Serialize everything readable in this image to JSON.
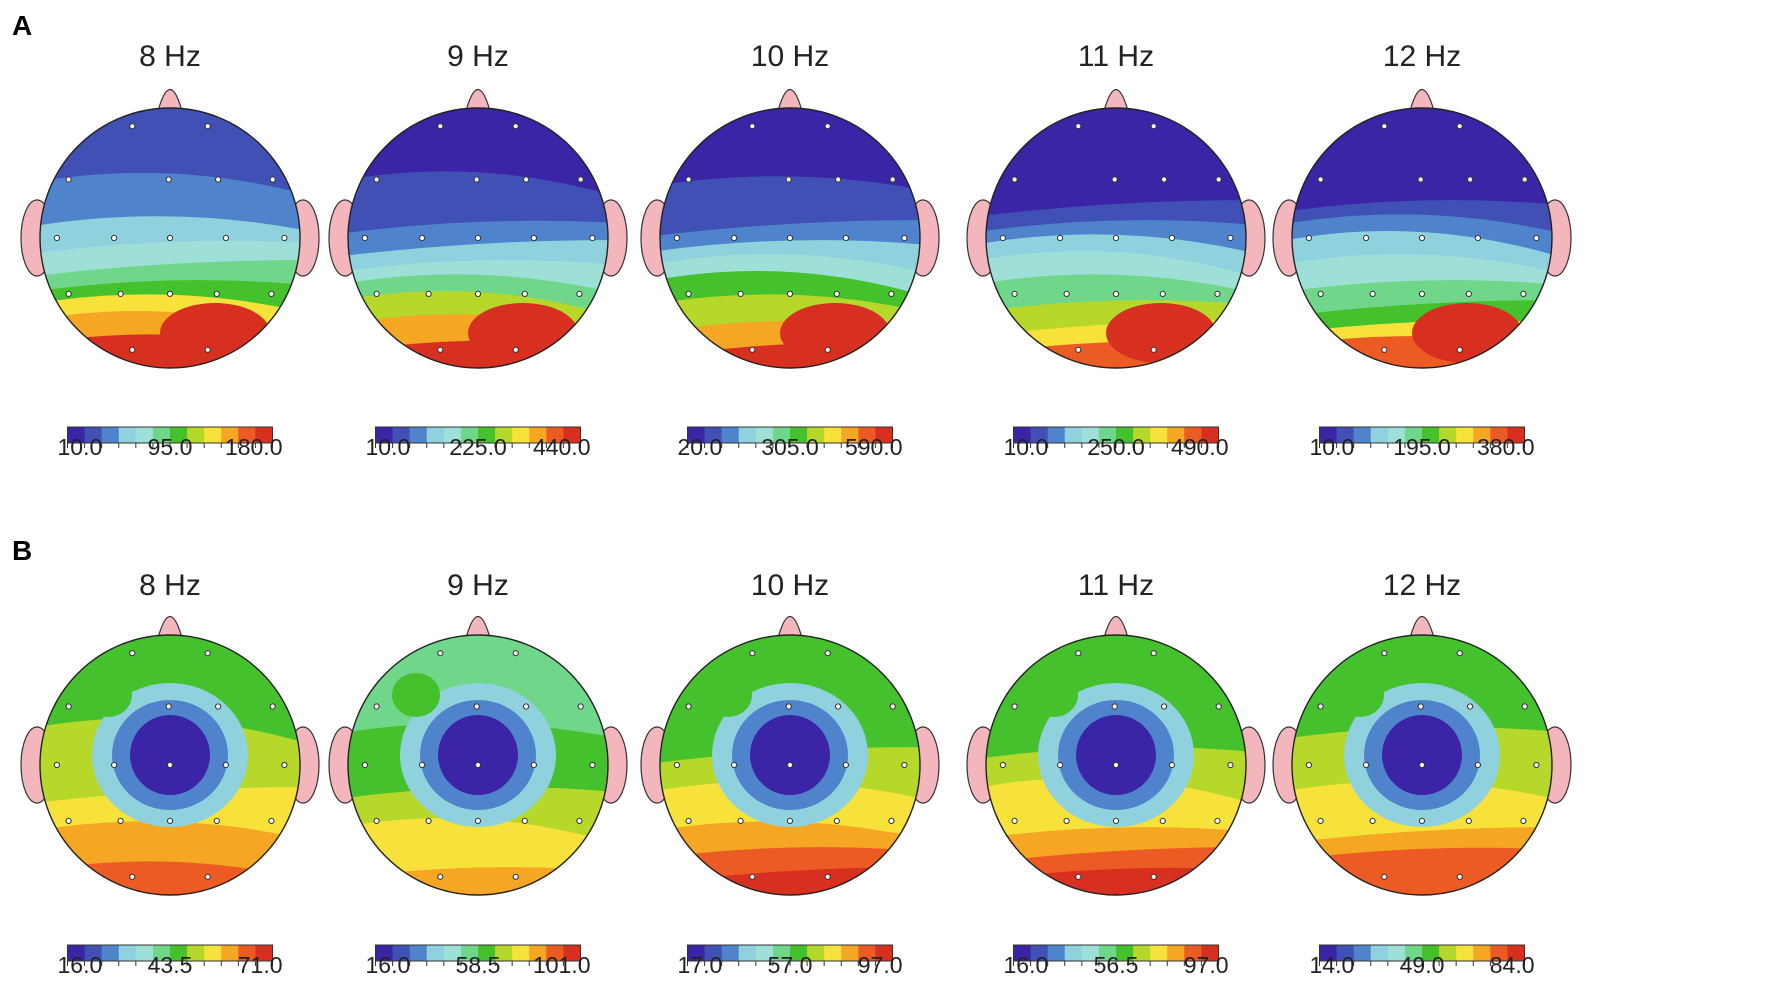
{
  "palette": [
    "#3b24a6",
    "#4050b5",
    "#4f84cc",
    "#8fd2de",
    "#9ee0d8",
    "#6fd68a",
    "#45c12d",
    "#b5d82b",
    "#f6e23a",
    "#f5a623",
    "#ec5b23",
    "#d73020"
  ],
  "panels": [
    {
      "label": "A",
      "maps": [
        {
          "freq": "8 Hz",
          "ticks": [
            "10.0",
            "95.0",
            "180.0"
          ],
          "front": 0.12,
          "back": 0.95,
          "center": 0.05,
          "side": "right"
        },
        {
          "freq": "9 Hz",
          "ticks": [
            "10.0",
            "225.0",
            "440.0"
          ],
          "front": 0.02,
          "back": 0.92,
          "center": 0.0,
          "side": "right"
        },
        {
          "freq": "10 Hz",
          "ticks": [
            "20.0",
            "305.0",
            "590.0"
          ],
          "front": 0.02,
          "back": 0.93,
          "center": 0.0,
          "side": "right"
        },
        {
          "freq": "11 Hz",
          "ticks": [
            "10.0",
            "250.0",
            "490.0"
          ],
          "front": 0.0,
          "back": 0.88,
          "center": 0.0,
          "side": "right"
        },
        {
          "freq": "12 Hz",
          "ticks": [
            "10.0",
            "195.0",
            "380.0"
          ],
          "front": 0.0,
          "back": 0.85,
          "center": 0.0,
          "side": "right"
        }
      ]
    },
    {
      "label": "B",
      "maps": [
        {
          "freq": "8 Hz",
          "ticks": [
            "16.0",
            "43.5",
            "71.0"
          ],
          "front": 0.55,
          "back": 0.85,
          "center": 0.0,
          "side": "both"
        },
        {
          "freq": "9 Hz",
          "ticks": [
            "16.0",
            "58.5",
            "101.0"
          ],
          "front": 0.45,
          "back": 0.8,
          "center": 0.0,
          "side": "both"
        },
        {
          "freq": "10 Hz",
          "ticks": [
            "17.0",
            "57.0",
            "97.0"
          ],
          "front": 0.5,
          "back": 0.95,
          "center": 0.05,
          "side": "both"
        },
        {
          "freq": "11 Hz",
          "ticks": [
            "16.0",
            "56.5",
            "97.0"
          ],
          "front": 0.5,
          "back": 0.95,
          "center": 0.05,
          "side": "both"
        },
        {
          "freq": "12 Hz",
          "ticks": [
            "14.0",
            "49.0",
            "84.0"
          ],
          "front": 0.55,
          "back": 0.9,
          "center": 0.0,
          "side": "both"
        }
      ]
    }
  ]
}
